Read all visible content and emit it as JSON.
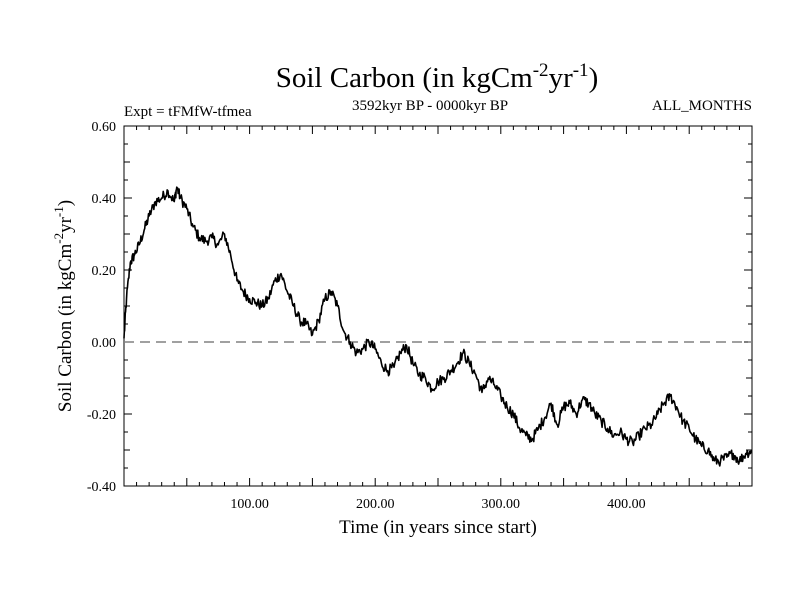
{
  "chart_data": {
    "type": "line",
    "title": "Soil Carbon (in kgCm",
    "title_exp1": "-2",
    "title_mid": "yr",
    "title_exp2": "-1",
    "title_close": ")",
    "subtitle_left": "Expt = tFMfW-tfmea",
    "subtitle_center": "3592kyr BP - 0000kyr BP",
    "subtitle_right": "ALL_MONTHS",
    "xlabel": "Time (in years since start)",
    "ylabel": "Soil Carbon (in kgCm",
    "ylabel_exp1": "-2",
    "ylabel_mid": "yr",
    "ylabel_exp2": "-1",
    "ylabel_close": ")",
    "xlim": [
      0,
      500
    ],
    "ylim": [
      -0.4,
      0.6
    ],
    "x_ticks": [
      100,
      200,
      300,
      400
    ],
    "x_tick_labels": [
      "100.00",
      "200.00",
      "300.00",
      "400.00"
    ],
    "y_ticks": [
      -0.4,
      -0.2,
      0.0,
      0.2,
      0.4,
      0.6
    ],
    "y_tick_labels": [
      "-0.40",
      "-0.20",
      "0.00",
      "0.20",
      "0.40",
      "0.60"
    ],
    "reference_line_y": 0.0,
    "line_color": "#000000",
    "reference_color": "#808080",
    "series": [
      {
        "name": "Soil Carbon",
        "x": [
          0,
          2,
          5,
          8,
          12,
          16,
          20,
          25,
          30,
          35,
          40,
          42,
          45,
          50,
          55,
          60,
          65,
          70,
          75,
          80,
          85,
          90,
          95,
          100,
          105,
          110,
          115,
          120,
          125,
          130,
          135,
          140,
          145,
          150,
          155,
          160,
          165,
          170,
          175,
          180,
          185,
          190,
          195,
          200,
          205,
          210,
          215,
          220,
          225,
          230,
          235,
          240,
          245,
          250,
          255,
          260,
          265,
          270,
          275,
          280,
          285,
          290,
          295,
          300,
          305,
          310,
          315,
          320,
          325,
          330,
          335,
          340,
          345,
          350,
          355,
          360,
          365,
          370,
          375,
          380,
          385,
          390,
          395,
          400,
          405,
          410,
          415,
          420,
          425,
          430,
          435,
          440,
          445,
          450,
          455,
          460,
          465,
          470,
          475,
          480,
          485,
          490,
          495,
          500
        ],
        "values": [
          0.01,
          0.12,
          0.22,
          0.24,
          0.27,
          0.31,
          0.35,
          0.39,
          0.4,
          0.42,
          0.39,
          0.43,
          0.4,
          0.37,
          0.32,
          0.29,
          0.28,
          0.29,
          0.27,
          0.3,
          0.24,
          0.17,
          0.14,
          0.12,
          0.11,
          0.1,
          0.12,
          0.17,
          0.19,
          0.14,
          0.1,
          0.06,
          0.05,
          0.02,
          0.06,
          0.12,
          0.14,
          0.1,
          0.03,
          0.0,
          -0.03,
          -0.02,
          0.0,
          -0.02,
          -0.06,
          -0.08,
          -0.07,
          -0.03,
          -0.01,
          -0.06,
          -0.09,
          -0.1,
          -0.13,
          -0.11,
          -0.1,
          -0.08,
          -0.06,
          -0.03,
          -0.06,
          -0.09,
          -0.14,
          -0.1,
          -0.12,
          -0.15,
          -0.18,
          -0.2,
          -0.24,
          -0.26,
          -0.27,
          -0.24,
          -0.21,
          -0.17,
          -0.23,
          -0.18,
          -0.17,
          -0.2,
          -0.16,
          -0.17,
          -0.2,
          -0.22,
          -0.24,
          -0.26,
          -0.25,
          -0.27,
          -0.28,
          -0.26,
          -0.24,
          -0.23,
          -0.2,
          -0.17,
          -0.15,
          -0.18,
          -0.22,
          -0.24,
          -0.27,
          -0.29,
          -0.3,
          -0.33,
          -0.33,
          -0.32,
          -0.31,
          -0.33,
          -0.31,
          -0.3
        ]
      }
    ]
  }
}
